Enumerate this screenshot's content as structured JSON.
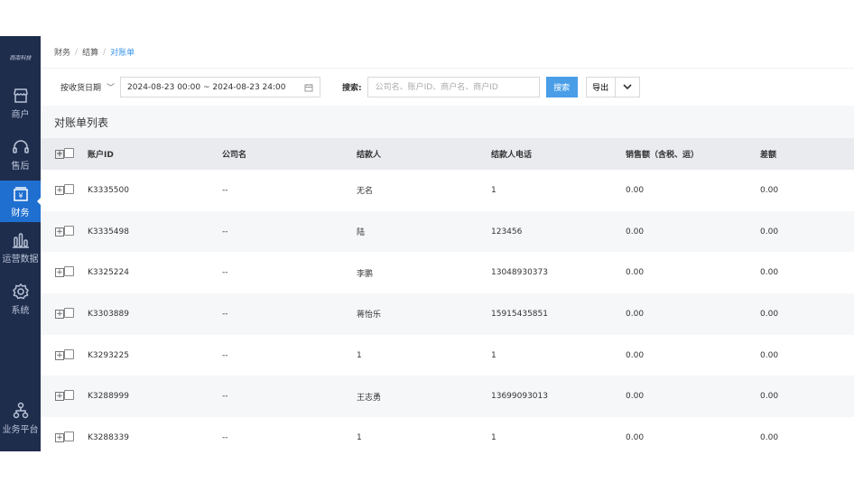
{
  "logo": "西南科技",
  "sidebar": {
    "items": [
      {
        "label": "商户",
        "icon": "store-icon"
      },
      {
        "label": "售后",
        "icon": "headset-icon"
      },
      {
        "label": "财务",
        "icon": "finance-icon",
        "active": true
      },
      {
        "label": "运营数据",
        "icon": "bar-chart-icon"
      },
      {
        "label": "系统",
        "icon": "gear-icon"
      }
    ],
    "bottom": {
      "label": "业务平台",
      "icon": "org-chart-icon"
    }
  },
  "breadcrumb": [
    "财务",
    "结算",
    "对账单"
  ],
  "filters": {
    "date_type": "按收货日期",
    "date_range": "2024-08-23 00:00 ~ 2024-08-23 24:00",
    "search_label": "搜索:",
    "search_placeholder": "公司名、账户ID、商户名、商户ID",
    "search_value": "",
    "search_button": "搜索",
    "export_button": "导出"
  },
  "list_title": "对账单列表",
  "table": {
    "columns": [
      "账户ID",
      "公司名",
      "结款人",
      "结款人电话",
      "销售额（含税、运）",
      "差额"
    ],
    "rows": [
      [
        "K3335500",
        "--",
        "无名",
        "1",
        "0.00",
        "0.00"
      ],
      [
        "K3335498",
        "--",
        "陆",
        "123456",
        "0.00",
        "0.00"
      ],
      [
        "K3325224",
        "--",
        "李鹏",
        "13048930373",
        "0.00",
        "0.00"
      ],
      [
        "K3303889",
        "--",
        "蒋怡乐",
        "15915435851",
        "0.00",
        "0.00"
      ],
      [
        "K3293225",
        "--",
        "1",
        "1",
        "0.00",
        "0.00"
      ],
      [
        "K3288999",
        "--",
        "王志勇",
        "13699093013",
        "0.00",
        "0.00"
      ],
      [
        "K3288339",
        "--",
        "1",
        "1",
        "0.00",
        "0.00"
      ]
    ]
  },
  "colors": {
    "sidebar": "#1f2d4d",
    "active": "#1e6fd0",
    "primary": "#4a9ee8",
    "link": "#3a95e8"
  }
}
